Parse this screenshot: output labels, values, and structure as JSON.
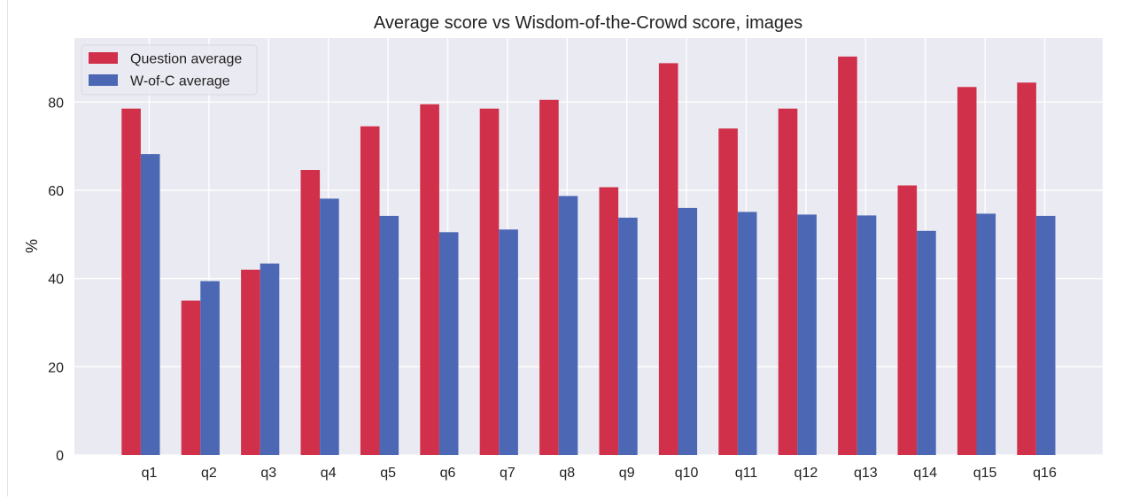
{
  "chart_data": {
    "type": "bar",
    "title": "Average score vs Wisdom-of-the-Crowd score, images",
    "xlabel": "",
    "ylabel": "%",
    "ylim": [
      0,
      94.5
    ],
    "yticks": [
      0,
      20,
      40,
      60,
      80
    ],
    "grid": true,
    "legend_position": "top-left",
    "categories": [
      "q1",
      "q2",
      "q3",
      "q4",
      "q5",
      "q6",
      "q7",
      "q8",
      "q9",
      "q10",
      "q11",
      "q12",
      "q13",
      "q14",
      "q15",
      "q16"
    ],
    "series": [
      {
        "name": "Question average",
        "color": "#d1304a",
        "values": [
          78.5,
          35,
          42,
          64.6,
          74.5,
          79.5,
          78.5,
          80.5,
          60.7,
          88.8,
          74,
          78.5,
          90.3,
          61.1,
          83.4,
          84.4
        ]
      },
      {
        "name": "W-of-C average",
        "color": "#4c68b5",
        "values": [
          68.2,
          39.4,
          43.4,
          58.1,
          54.2,
          50.5,
          51.1,
          58.7,
          53.8,
          56,
          55.1,
          54.5,
          54.3,
          50.8,
          54.7,
          54.2
        ]
      }
    ]
  },
  "colors": {
    "plot_background": "#eaeaf2",
    "grid": "#ffffff"
  }
}
